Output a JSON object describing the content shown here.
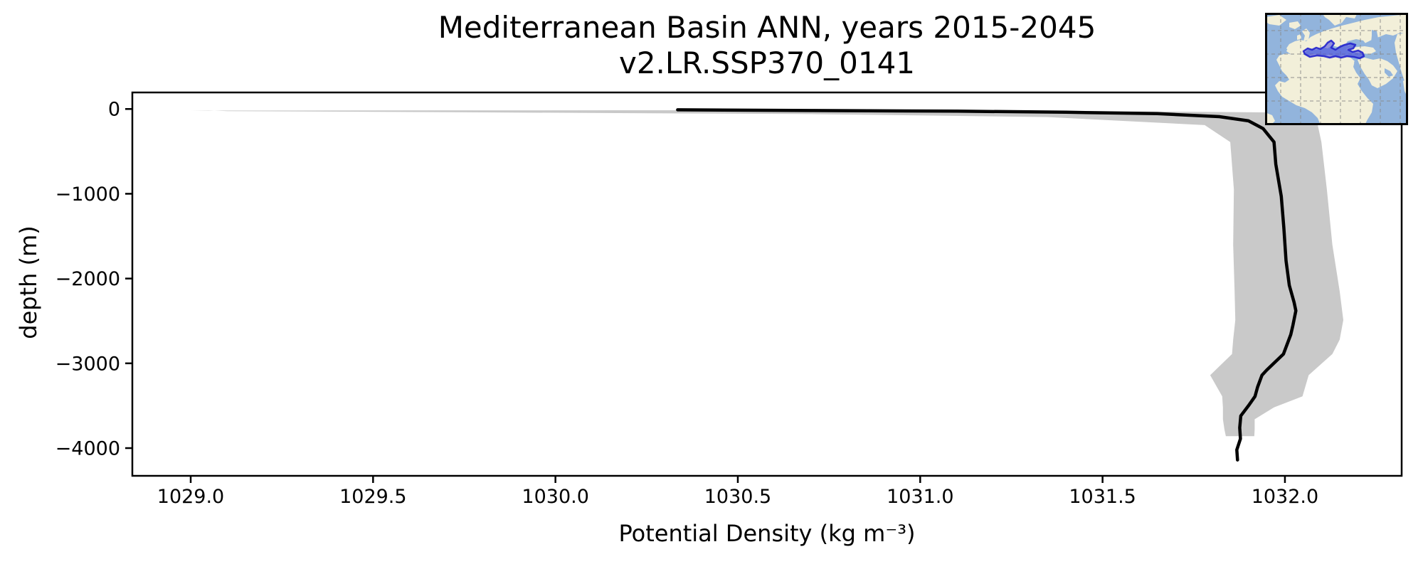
{
  "figure": {
    "title_line1": "Mediterranean Basin ANN, years 2015-2045",
    "title_line2": "v2.LR.SSP370_0141",
    "background": "#ffffff"
  },
  "chart_data": {
    "type": "line",
    "title": "Mediterranean Basin ANN, years 2015-2045",
    "subtitle": "v2.LR.SSP370_0141",
    "xlabel": "Potential Density (kg m⁻³)",
    "ylabel": "depth (m)",
    "xlim": [
      1028.84,
      1032.32
    ],
    "ylim": [
      195,
      -4327
    ],
    "grid": false,
    "legend": "none",
    "x_ticks": {
      "values": [
        1029.0,
        1029.5,
        1030.0,
        1030.5,
        1031.0,
        1031.5,
        1032.0
      ],
      "labels": [
        "1029.0",
        "1029.5",
        "1030.0",
        "1030.5",
        "1031.0",
        "1031.5",
        "1032.0"
      ]
    },
    "y_ticks": {
      "values": [
        0,
        -1000,
        -2000,
        -3000,
        -4000
      ],
      "labels": [
        "0",
        "−1000",
        "−2000",
        "−3000",
        "−4000"
      ]
    },
    "series": [
      {
        "name": "mean potential density profile",
        "color": "#000000",
        "line_width": 4.5,
        "points": [
          [
            1030.335,
            -10
          ],
          [
            1030.7,
            -18
          ],
          [
            1031.1,
            -26
          ],
          [
            1031.4,
            -38
          ],
          [
            1031.65,
            -55
          ],
          [
            1031.82,
            -90
          ],
          [
            1031.9,
            -140
          ],
          [
            1031.94,
            -230
          ],
          [
            1031.97,
            -390
          ],
          [
            1031.975,
            -650
          ],
          [
            1031.99,
            -1030
          ],
          [
            1031.997,
            -1400
          ],
          [
            1032.003,
            -1790
          ],
          [
            1032.012,
            -2080
          ],
          [
            1032.025,
            -2280
          ],
          [
            1032.03,
            -2380
          ],
          [
            1032.022,
            -2550
          ],
          [
            1032.016,
            -2660
          ],
          [
            1031.996,
            -2890
          ],
          [
            1031.95,
            -3080
          ],
          [
            1031.937,
            -3140
          ],
          [
            1031.925,
            -3280
          ],
          [
            1031.918,
            -3390
          ],
          [
            1031.9,
            -3500
          ],
          [
            1031.879,
            -3620
          ],
          [
            1031.876,
            -3760
          ],
          [
            1031.878,
            -3890
          ],
          [
            1031.868,
            -4020
          ],
          [
            1031.87,
            -4140
          ]
        ]
      }
    ],
    "band": {
      "name": "min-max envelope",
      "color": "#c9c9c9",
      "rows": [
        [
          -18,
          1029.0,
          1029.0
        ],
        [
          -15,
          1029.05,
          1030.3
        ],
        [
          -25,
          1029.1,
          1031.5
        ],
        [
          -40,
          1029.8,
          1031.95
        ],
        [
          -60,
          1030.7,
          1032.03
        ],
        [
          -95,
          1031.35,
          1032.07
        ],
        [
          -190,
          1031.78,
          1032.09
        ],
        [
          -390,
          1031.85,
          1032.1
        ],
        [
          -950,
          1031.86,
          1032.115
        ],
        [
          -1600,
          1031.858,
          1032.13
        ],
        [
          -2150,
          1031.862,
          1032.15
        ],
        [
          -2490,
          1031.864,
          1032.16
        ],
        [
          -2720,
          1031.858,
          1032.15
        ],
        [
          -2890,
          1031.855,
          1032.13
        ],
        [
          -3140,
          1031.795,
          1032.065
        ],
        [
          -3390,
          1031.828,
          1032.048
        ],
        [
          -3520,
          1031.83,
          1031.97
        ],
        [
          -3660,
          1031.83,
          1031.917
        ],
        [
          -3780,
          1031.834,
          1031.917
        ],
        [
          -3860,
          1031.838,
          1031.916
        ]
      ]
    }
  },
  "inset_map": {
    "highlighted_region": "Mediterranean Sea",
    "colors": {
      "ocean": "#92b4dc",
      "land": "#f2efd9",
      "grid": "#888888",
      "frame": "#000000",
      "region_fill": "#4343de",
      "region_stroke": "#2323cc"
    }
  }
}
